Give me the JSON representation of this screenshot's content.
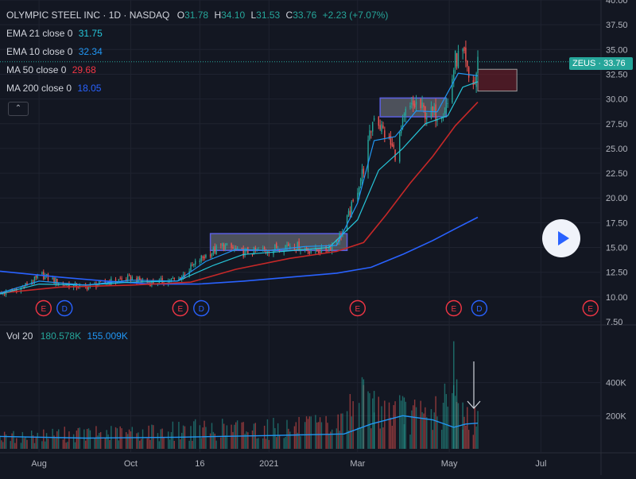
{
  "header": {
    "symbol_title": "OLYMPIC STEEL INC · 1D · NASDAQ",
    "o_label": "O",
    "o_value": "31.78",
    "h_label": "H",
    "h_value": "34.10",
    "l_label": "L",
    "l_value": "31.53",
    "c_label": "C",
    "c_value": "33.76",
    "change": "+2.23 (+7.07%)"
  },
  "indicators": [
    {
      "label": "EMA 21 close 0",
      "value": "31.75",
      "color": "#26c6da"
    },
    {
      "label": "EMA 10 close 0",
      "value": "32.34",
      "color": "#2196f3"
    },
    {
      "label": "MA 50 close 0",
      "value": "29.68",
      "color": "#f23645"
    },
    {
      "label": "MA 200 close 0",
      "value": "18.05",
      "color": "#2962ff"
    }
  ],
  "collapse_label": "⌃",
  "volume": {
    "label": "Vol 20",
    "value1": "180.578K",
    "value2": "155.009K",
    "value1_color": "#26a69a",
    "value2_color": "#2196f3"
  },
  "price_tag": {
    "ticker": "ZEUS",
    "price": "33.76",
    "text": "ZEUS · 33.76"
  },
  "chart_data": {
    "type": "candlestick",
    "title": "OLYMPIC STEEL INC · 1D · NASDAQ",
    "price_axis": {
      "min": 7.5,
      "max": 40,
      "ticks": [
        "40.00",
        "37.50",
        "35.00",
        "32.50",
        "30.00",
        "27.50",
        "25.00",
        "22.50",
        "20.00",
        "17.50",
        "15.00",
        "12.50",
        "10.00",
        "7.50"
      ]
    },
    "volume_axis": {
      "ticks": [
        "400K",
        "200K"
      ],
      "tick_values": [
        400000,
        200000
      ]
    },
    "time_axis": [
      {
        "label": "Aug",
        "date": "2020-08-01"
      },
      {
        "label": "Oct",
        "date": "2020-10-01"
      },
      {
        "label": "16",
        "date": "2020-11-16"
      },
      {
        "label": "2021",
        "date": "2021-01-01"
      },
      {
        "label": "Mar",
        "date": "2021-03-01"
      },
      {
        "label": "May",
        "date": "2021-05-01"
      },
      {
        "label": "Jul",
        "date": "2021-07-01"
      }
    ],
    "date_range": [
      "2020-07-06",
      "2021-08-10"
    ],
    "last_bar_date": "2021-05-20",
    "price_path": [
      [
        "2020-07-06",
        10.3
      ],
      [
        "2020-07-20",
        10.9
      ],
      [
        "2020-08-03",
        12.2
      ],
      [
        "2020-08-17",
        11.3
      ],
      [
        "2020-09-01",
        11.0
      ],
      [
        "2020-09-15",
        11.5
      ],
      [
        "2020-10-01",
        11.9
      ],
      [
        "2020-10-15",
        11.4
      ],
      [
        "2020-11-02",
        11.8
      ],
      [
        "2020-11-16",
        13.8
      ],
      [
        "2020-12-01",
        15.2
      ],
      [
        "2020-12-15",
        14.5
      ],
      [
        "2021-01-01",
        14.8
      ],
      [
        "2021-01-15",
        15.3
      ],
      [
        "2021-02-01",
        14.6
      ],
      [
        "2021-02-10",
        15.0
      ],
      [
        "2021-02-19",
        16.5
      ],
      [
        "2021-02-26",
        19.5
      ],
      [
        "2021-03-05",
        23.0
      ],
      [
        "2021-03-12",
        28.5
      ],
      [
        "2021-03-19",
        26.5
      ],
      [
        "2021-03-26",
        24.5
      ],
      [
        "2021-04-02",
        28.5
      ],
      [
        "2021-04-09",
        29.5
      ],
      [
        "2021-04-16",
        28.5
      ],
      [
        "2021-04-23",
        28.5
      ],
      [
        "2021-04-30",
        29.5
      ],
      [
        "2021-05-05",
        34.0
      ],
      [
        "2021-05-10",
        34.5
      ],
      [
        "2021-05-14",
        32.0
      ],
      [
        "2021-05-18",
        31.5
      ],
      [
        "2021-05-20",
        33.76
      ]
    ],
    "ema10": [
      [
        "2020-07-06",
        10.4
      ],
      [
        "2020-08-01",
        11.6
      ],
      [
        "2020-09-01",
        11.2
      ],
      [
        "2020-10-01",
        11.7
      ],
      [
        "2020-11-01",
        11.6
      ],
      [
        "2020-11-20",
        13.6
      ],
      [
        "2020-12-10",
        14.8
      ],
      [
        "2021-01-01",
        14.7
      ],
      [
        "2021-01-25",
        15.1
      ],
      [
        "2021-02-15",
        15.2
      ],
      [
        "2021-03-01",
        19.5
      ],
      [
        "2021-03-12",
        25.8
      ],
      [
        "2021-03-26",
        26.2
      ],
      [
        "2021-04-09",
        28.8
      ],
      [
        "2021-04-23",
        28.7
      ],
      [
        "2021-05-07",
        32.6
      ],
      [
        "2021-05-20",
        32.34
      ]
    ],
    "ema21": [
      [
        "2020-07-06",
        10.3
      ],
      [
        "2020-08-01",
        11.3
      ],
      [
        "2020-09-01",
        11.2
      ],
      [
        "2020-10-01",
        11.5
      ],
      [
        "2020-11-01",
        11.6
      ],
      [
        "2020-11-25",
        13.2
      ],
      [
        "2020-12-15",
        14.3
      ],
      [
        "2021-01-10",
        14.6
      ],
      [
        "2021-02-10",
        15.0
      ],
      [
        "2021-03-01",
        17.8
      ],
      [
        "2021-03-15",
        22.8
      ],
      [
        "2021-03-31",
        25.0
      ],
      [
        "2021-04-15",
        27.5
      ],
      [
        "2021-04-30",
        28.3
      ],
      [
        "2021-05-10",
        31.2
      ],
      [
        "2021-05-20",
        31.75
      ]
    ],
    "ma50": [
      [
        "2020-07-06",
        10.4
      ],
      [
        "2020-08-15",
        11.0
      ],
      [
        "2020-10-01",
        11.2
      ],
      [
        "2020-11-10",
        11.5
      ],
      [
        "2020-12-10",
        12.8
      ],
      [
        "2021-01-15",
        13.9
      ],
      [
        "2021-02-15",
        14.6
      ],
      [
        "2021-03-05",
        15.5
      ],
      [
        "2021-03-20",
        18.3
      ],
      [
        "2021-04-05",
        21.5
      ],
      [
        "2021-04-20",
        24.2
      ],
      [
        "2021-05-05",
        27.3
      ],
      [
        "2021-05-20",
        29.68
      ]
    ],
    "ma200": [
      [
        "2020-07-06",
        12.6
      ],
      [
        "2020-08-15",
        12.0
      ],
      [
        "2020-09-15",
        11.6
      ],
      [
        "2020-10-15",
        11.3
      ],
      [
        "2020-11-15",
        11.3
      ],
      [
        "2020-12-15",
        11.6
      ],
      [
        "2021-01-15",
        12.0
      ],
      [
        "2021-02-15",
        12.4
      ],
      [
        "2021-03-10",
        13.0
      ],
      [
        "2021-03-31",
        14.3
      ],
      [
        "2021-04-20",
        15.7
      ],
      [
        "2021-05-05",
        16.9
      ],
      [
        "2021-05-20",
        18.05
      ]
    ],
    "volume_path": [
      [
        "2020-07-06",
        70000
      ],
      [
        "2020-08-15",
        90000
      ],
      [
        "2020-10-01",
        100000
      ],
      [
        "2020-11-15",
        120000
      ],
      [
        "2021-01-01",
        130000
      ],
      [
        "2021-02-15",
        140000
      ],
      [
        "2021-03-01",
        300000
      ],
      [
        "2021-03-15",
        250000
      ],
      [
        "2021-04-01",
        220000
      ],
      [
        "2021-04-15",
        200000
      ],
      [
        "2021-05-04",
        300000
      ],
      [
        "2021-05-12",
        200000
      ],
      [
        "2021-05-20",
        180578
      ]
    ],
    "volume_ma20": [
      [
        "2020-07-06",
        75000
      ],
      [
        "2020-09-01",
        65000
      ],
      [
        "2020-11-01",
        70000
      ],
      [
        "2021-01-01",
        80000
      ],
      [
        "2021-02-20",
        90000
      ],
      [
        "2021-03-10",
        150000
      ],
      [
        "2021-03-31",
        200000
      ],
      [
        "2021-04-20",
        175000
      ],
      [
        "2021-05-04",
        130000
      ],
      [
        "2021-05-12",
        150000
      ],
      [
        "2021-05-20",
        155009
      ]
    ],
    "volume_spikes": [
      [
        "2021-03-05",
        420000
      ],
      [
        "2021-03-12",
        350000
      ],
      [
        "2021-04-01",
        310000
      ],
      [
        "2021-05-04",
        650000
      ],
      [
        "2021-05-06",
        420000
      ],
      [
        "2021-05-10",
        280000
      ]
    ],
    "consolidation_boxes": [
      {
        "start": "2020-11-23",
        "end": "2021-02-22",
        "low": 14.7,
        "high": 16.4
      },
      {
        "start": "2021-03-16",
        "end": "2021-04-29",
        "low": 28.2,
        "high": 30.1
      }
    ],
    "shaded_zone": {
      "start": "2021-05-20",
      "end": "2021-06-15",
      "low": 30.8,
      "high": 33.0
    },
    "events": [
      {
        "label": "E",
        "date": "2020-08-04"
      },
      {
        "label": "D",
        "date": "2020-08-18"
      },
      {
        "label": "E",
        "date": "2020-11-03"
      },
      {
        "label": "D",
        "date": "2020-11-17"
      },
      {
        "label": "E",
        "date": "2021-03-01"
      },
      {
        "label": "E",
        "date": "2021-05-04"
      },
      {
        "label": "D",
        "date": "2021-05-21"
      },
      {
        "label": "E",
        "date": "2021-08-03"
      }
    ],
    "colors": {
      "up": "#26a69a",
      "down": "#ef5350",
      "ema10": "#2196f3",
      "ema21": "#26c6da",
      "ma50": "#c62828",
      "ma200": "#2962ff",
      "background": "#131722",
      "grid": "#1f2330",
      "event_earnings": "#f23645",
      "event_dividend": "#2962ff"
    }
  }
}
